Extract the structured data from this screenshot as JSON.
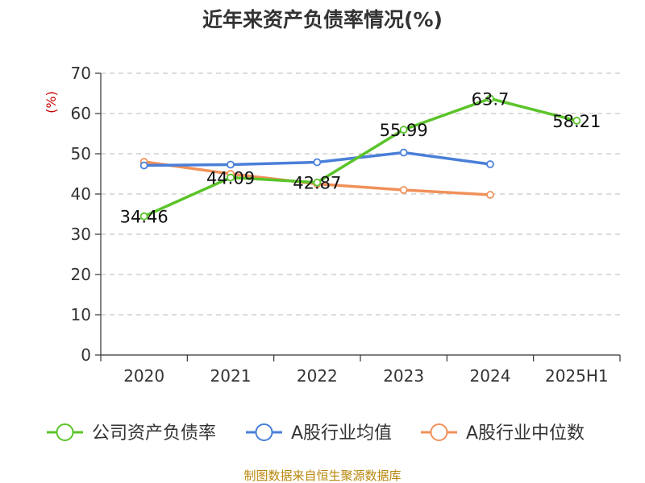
{
  "chart_data": {
    "type": "line",
    "title": "近年来资产负债率情况(%)",
    "ylabel": "(%)",
    "ylim": [
      0,
      70
    ],
    "yticks": [
      0,
      10,
      20,
      30,
      40,
      50,
      60,
      70
    ],
    "grid": true,
    "legend": "bottom",
    "categories": [
      "2020",
      "2021",
      "2022",
      "2023",
      "2024",
      "2025H1"
    ],
    "series": [
      {
        "name": "公司资产负债率",
        "color": "#5bc42a",
        "values": [
          34.46,
          44.09,
          42.87,
          55.99,
          63.7,
          58.21
        ],
        "labels": [
          "34.46",
          "44.09",
          "42.87",
          "55.99",
          "63.7",
          "58.21"
        ]
      },
      {
        "name": "A股行业均值",
        "color": "#4a7fd8",
        "values": [
          47.1,
          47.3,
          47.9,
          50.3,
          47.4,
          null
        ]
      },
      {
        "name": "A股行业中位数",
        "color": "#f0915a",
        "values": [
          48.0,
          45.0,
          42.5,
          41.0,
          39.8,
          null
        ]
      }
    ]
  },
  "footer": {
    "source": "制图数据来自恒生聚源数据库"
  }
}
